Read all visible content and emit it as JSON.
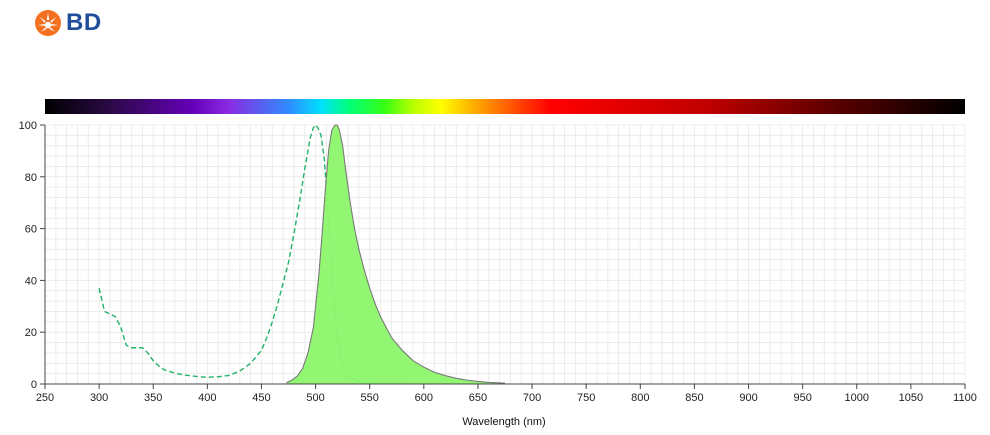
{
  "header": {
    "logo_text": "BD",
    "logo_icon": "bd-burst-logo"
  },
  "colors": {
    "brand_orange": "#f37021",
    "brand_blue": "#1f4e9c",
    "emission_fill": "#8cf56c",
    "emission_stroke": "#7a7a7a",
    "excitation_stroke": "#1fb36a",
    "grid": "#ececec"
  },
  "chart_data": {
    "type": "area",
    "xlabel": "Wavelength (nm)",
    "ylabel": "",
    "xlim": [
      250,
      1100
    ],
    "ylim": [
      0,
      100
    ],
    "x_ticks": [
      250,
      300,
      350,
      400,
      450,
      500,
      550,
      600,
      650,
      700,
      750,
      800,
      850,
      900,
      950,
      1000,
      1050,
      1100
    ],
    "y_ticks": [
      0,
      20,
      40,
      60,
      80,
      100
    ],
    "grid": true,
    "spectrum_bar": true,
    "series": [
      {
        "style": "dashed-line",
        "x": [
          300,
          305,
          310,
          315,
          320,
          325,
          330,
          335,
          340,
          345,
          350,
          355,
          360,
          370,
          380,
          390,
          400,
          410,
          420,
          430,
          440,
          450,
          455,
          460,
          465,
          470,
          475,
          480,
          485,
          490,
          495,
          498,
          500,
          502,
          505,
          508,
          511,
          514,
          517,
          520,
          525,
          530,
          540,
          550,
          560,
          570,
          580
        ],
        "values": [
          37,
          28,
          27,
          26,
          22,
          15,
          14,
          14,
          14,
          12,
          9,
          7,
          5.5,
          4.2,
          3.4,
          2.9,
          2.6,
          2.8,
          3.3,
          5,
          8,
          13,
          18,
          24,
          31,
          39,
          47,
          58,
          70,
          83,
          95,
          99,
          100,
          99,
          96,
          87,
          70,
          50,
          32,
          18,
          7,
          3,
          1,
          0.5,
          0.3,
          0.2,
          0.2
        ]
      },
      {
        "style": "filled-area",
        "x": [
          473,
          478,
          483,
          488,
          493,
          498,
          503,
          506,
          509,
          512,
          515,
          518,
          520,
          522,
          525,
          528,
          532,
          536,
          540,
          545,
          550,
          555,
          560,
          570,
          580,
          590,
          600,
          610,
          620,
          630,
          640,
          650,
          660,
          675
        ],
        "values": [
          0.5,
          1.5,
          3,
          6,
          12,
          22,
          42,
          58,
          75,
          90,
          98,
          100,
          100,
          98,
          92,
          82,
          70,
          60,
          52,
          44,
          37,
          31,
          26,
          18,
          13,
          9,
          6.5,
          4.5,
          3.2,
          2.2,
          1.5,
          1,
          0.6,
          0.3
        ]
      }
    ]
  }
}
